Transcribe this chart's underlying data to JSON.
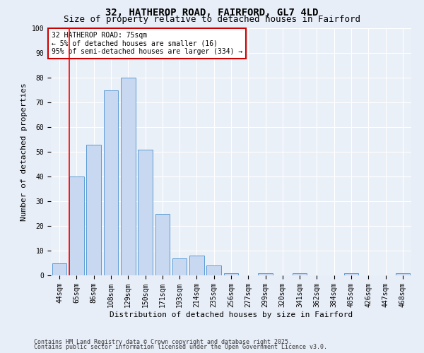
{
  "title1": "32, HATHEROP ROAD, FAIRFORD, GL7 4LD",
  "title2": "Size of property relative to detached houses in Fairford",
  "xlabel": "Distribution of detached houses by size in Fairford",
  "ylabel": "Number of detached properties",
  "categories": [
    "44sqm",
    "65sqm",
    "86sqm",
    "108sqm",
    "129sqm",
    "150sqm",
    "171sqm",
    "193sqm",
    "214sqm",
    "235sqm",
    "256sqm",
    "277sqm",
    "299sqm",
    "320sqm",
    "341sqm",
    "362sqm",
    "384sqm",
    "405sqm",
    "426sqm",
    "447sqm",
    "468sqm"
  ],
  "values": [
    5,
    40,
    53,
    75,
    80,
    51,
    25,
    7,
    8,
    4,
    1,
    0,
    1,
    0,
    1,
    0,
    0,
    1,
    0,
    0,
    1
  ],
  "bar_color": "#c8d8f0",
  "bar_edge_color": "#5b9bd5",
  "red_line_index": 1,
  "annotation_line1": "32 HATHEROP ROAD: 75sqm",
  "annotation_line2": "← 5% of detached houses are smaller (16)",
  "annotation_line3": "95% of semi-detached houses are larger (334) →",
  "annotation_box_color": "#ffffff",
  "annotation_box_edge": "#cc0000",
  "footer1": "Contains HM Land Registry data © Crown copyright and database right 2025.",
  "footer2": "Contains public sector information licensed under the Open Government Licence v3.0.",
  "bg_color": "#e8eef8",
  "plot_bg_color": "#eaf0f8",
  "grid_color": "#ffffff",
  "ylim": [
    0,
    100
  ],
  "title_fontsize": 10,
  "subtitle_fontsize": 9,
  "axis_label_fontsize": 8,
  "tick_fontsize": 7,
  "annotation_fontsize": 7,
  "footer_fontsize": 6
}
